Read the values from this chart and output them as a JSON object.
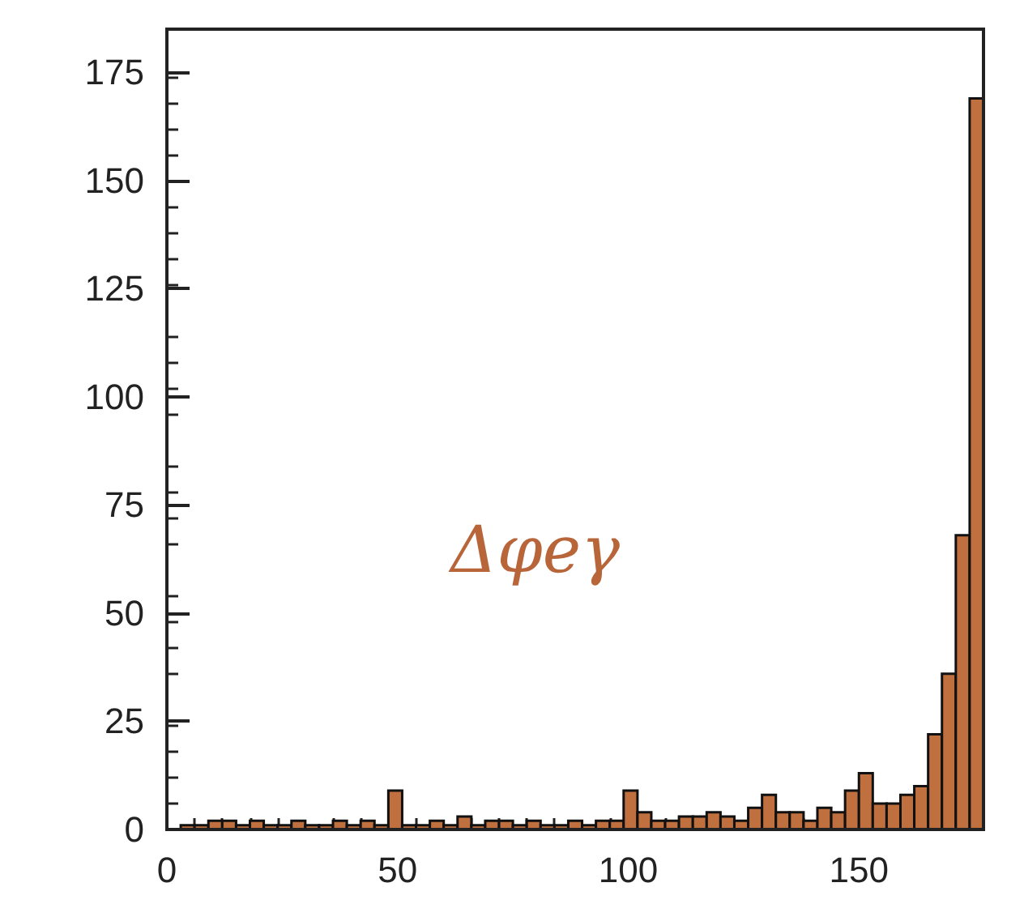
{
  "chart_data": {
    "type": "histogram",
    "bins": [
      0,
      3,
      6,
      9,
      12,
      15,
      18,
      21,
      24,
      27,
      30,
      33,
      36,
      39,
      42,
      45,
      48,
      51,
      54,
      57,
      60,
      63,
      66,
      69,
      72,
      75,
      78,
      81,
      84,
      87,
      90,
      93,
      96,
      99,
      102,
      105,
      108,
      111,
      114,
      117,
      120,
      123,
      126,
      129,
      132,
      135,
      138,
      141,
      144,
      147,
      150,
      153,
      156,
      159,
      162,
      165,
      168,
      171,
      174,
      177
    ],
    "values": [
      0,
      1,
      1,
      2,
      2,
      1,
      2,
      1,
      1,
      2,
      1,
      1,
      2,
      1,
      2,
      1,
      9,
      1,
      1,
      2,
      1,
      3,
      1,
      2,
      2,
      1,
      2,
      1,
      1,
      2,
      1,
      2,
      2,
      9,
      4,
      2,
      2,
      3,
      3,
      4,
      3,
      2,
      5,
      8,
      4,
      4,
      2,
      5,
      4,
      9,
      13,
      6,
      6,
      8,
      10,
      22,
      36,
      68,
      169
    ],
    "color": "#c0703f",
    "xlim": [
      0,
      177
    ],
    "xticks": [
      0,
      50,
      100,
      150
    ],
    "ylim": [
      0,
      185
    ],
    "yticks": [
      0,
      25,
      50,
      75,
      100,
      125,
      150,
      175
    ],
    "annotations": [
      "Δφeγ"
    ],
    "grid": false
  }
}
